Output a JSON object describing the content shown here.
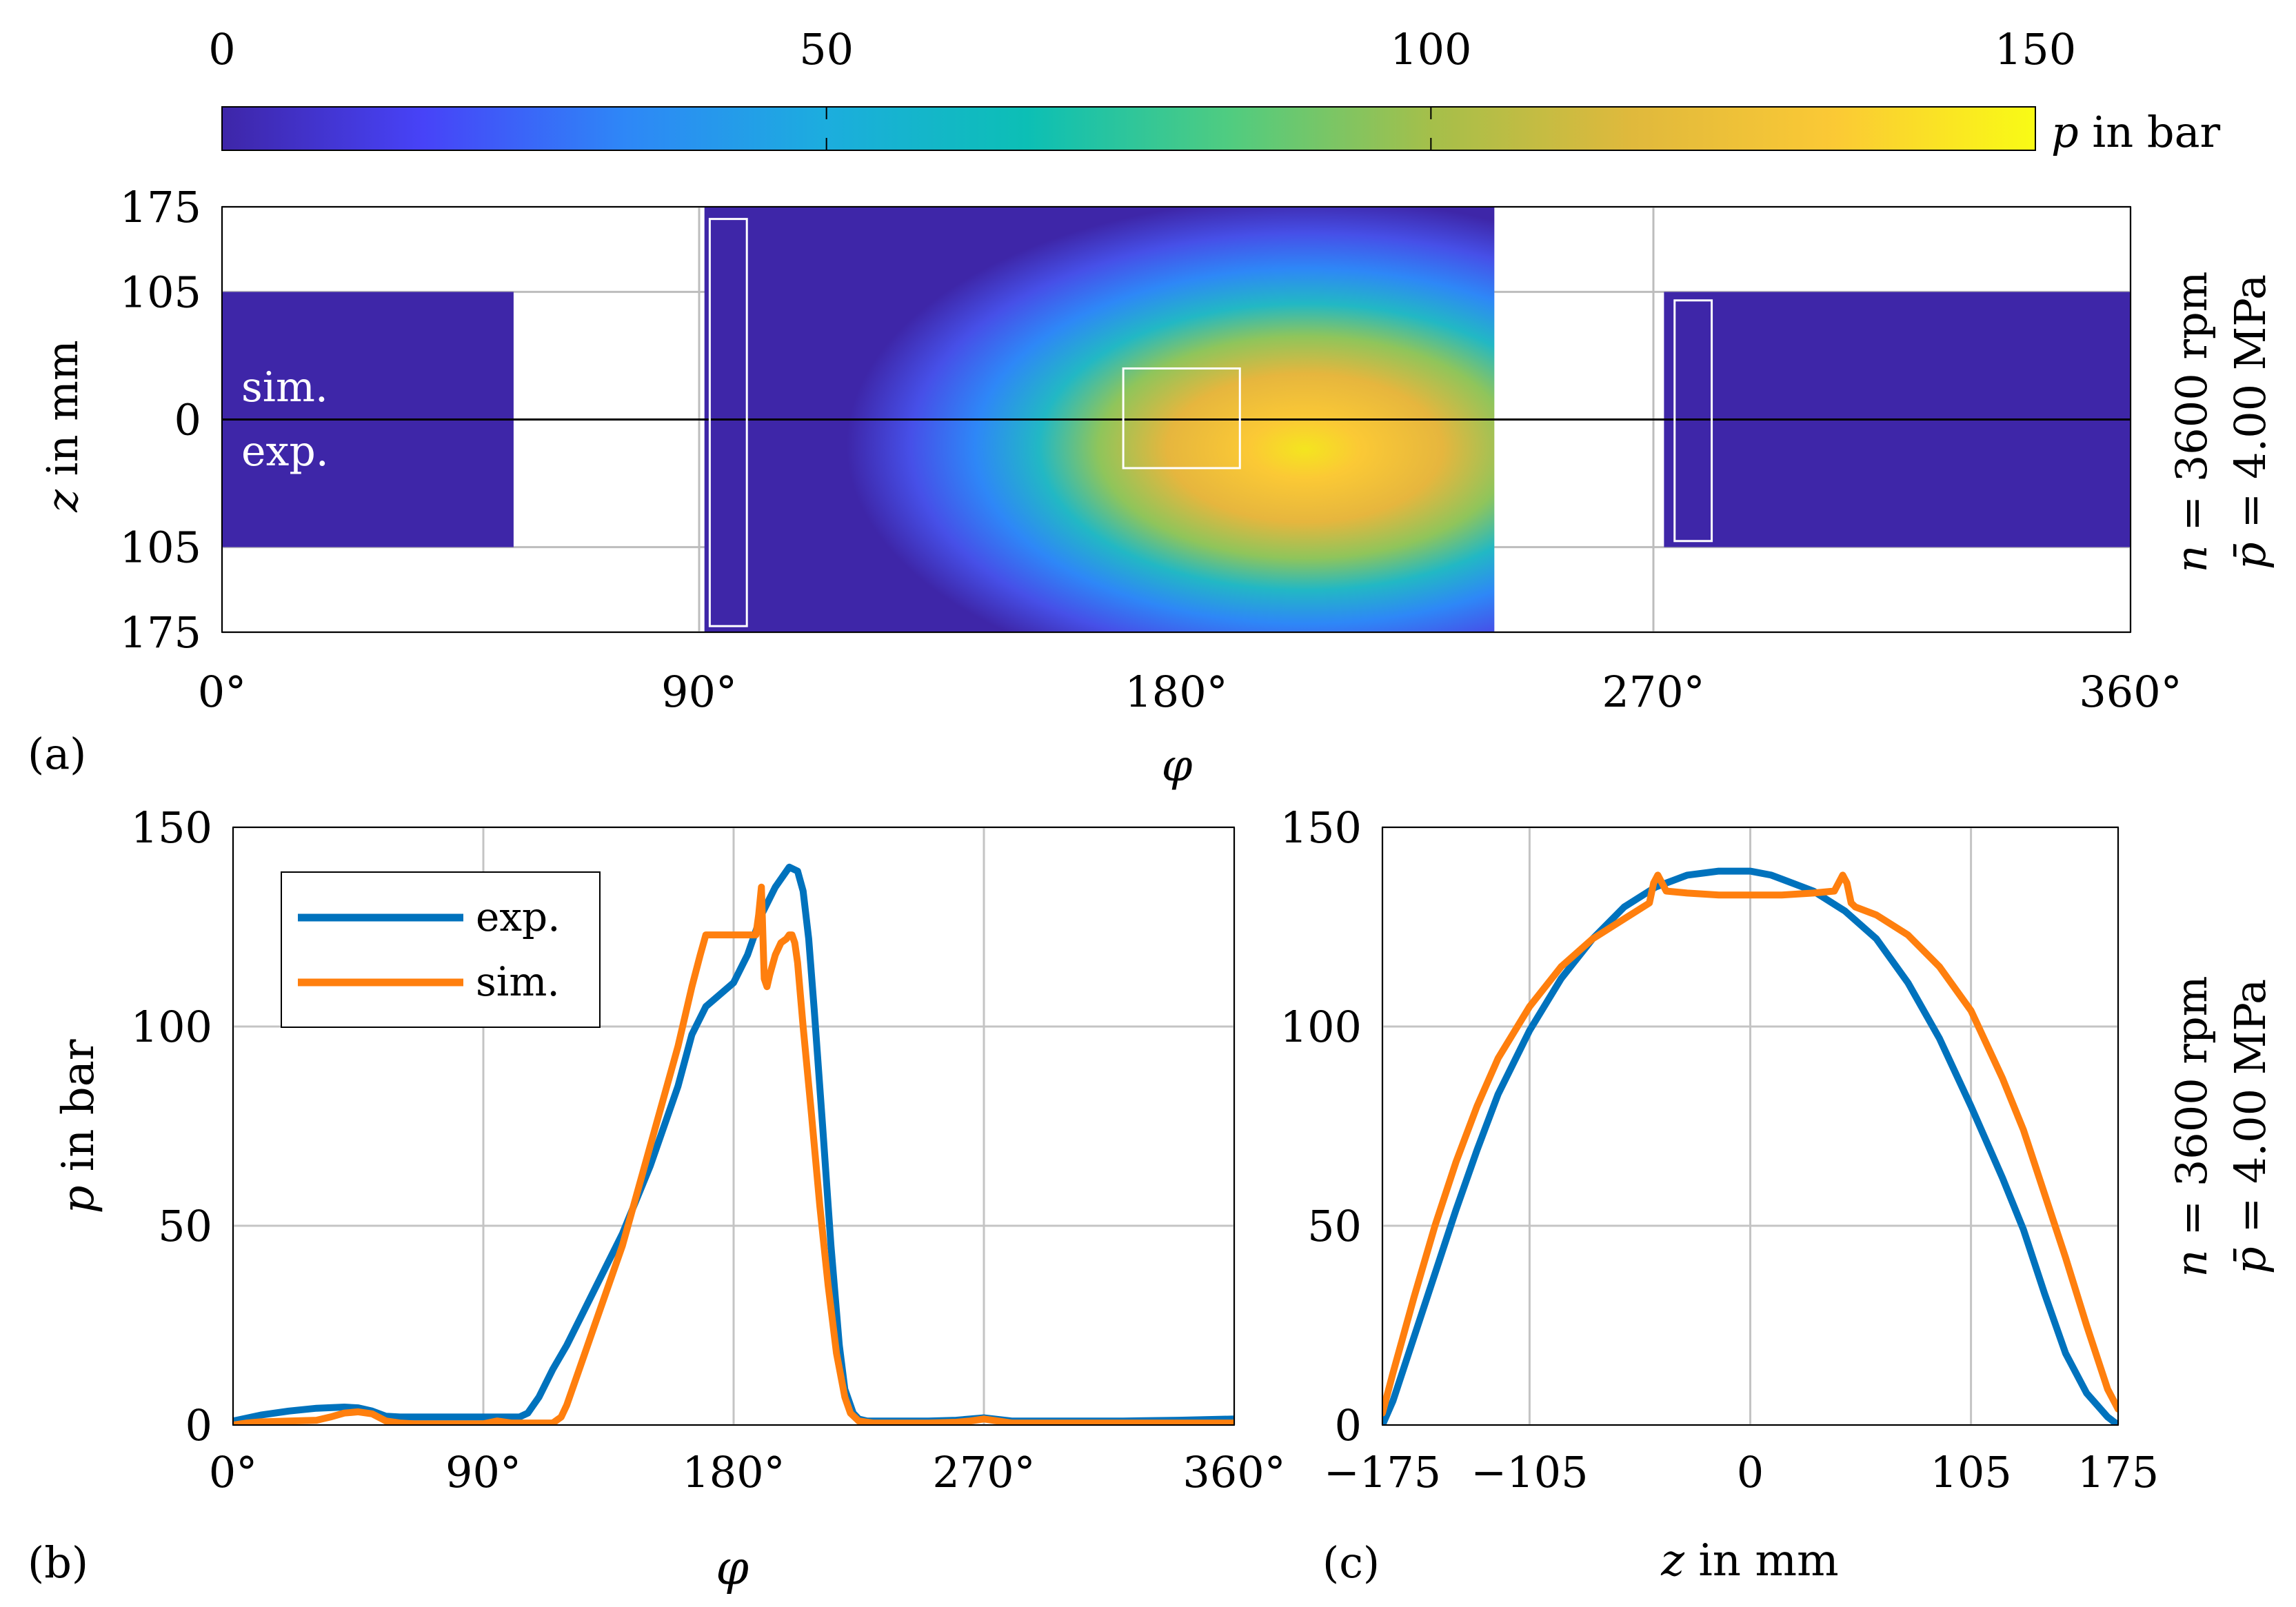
{
  "colorbar": {
    "ticks": [
      "0",
      "50",
      "100",
      "150"
    ],
    "tick_values": [
      0,
      50,
      100,
      150
    ],
    "range": [
      0,
      150
    ],
    "label_var": "p",
    "label_rest": " in bar",
    "colormap": [
      "#3e26a8",
      "#4743f8",
      "#2e87f7",
      "#1cadde",
      "#0cbfb5",
      "#50cc80",
      "#a5bf4a",
      "#e0b93c",
      "#fbc935",
      "#f9fb15"
    ]
  },
  "operating_point": {
    "speed_var": "n",
    "speed_text": " = 3600 rpm",
    "pressure_var": "p̄",
    "pressure_text": " = 4.00 MPa"
  },
  "chart_data": [
    {
      "id": "a",
      "type": "heatmap",
      "panel_label": "(a)",
      "title": "",
      "xlabel": "φ",
      "ylabel_var": "z",
      "ylabel_rest": " in mm",
      "xlim": [
        0,
        360
      ],
      "ylim": [
        -175,
        175
      ],
      "xticks": [
        0,
        90,
        180,
        270,
        360
      ],
      "xtick_labels": [
        "0°",
        "90°",
        "180°",
        "270°",
        "360°"
      ],
      "yticks": [
        175,
        105,
        0,
        -105,
        -175
      ],
      "ytick_labels": [
        "175",
        "105",
        "0",
        "105",
        "175"
      ],
      "grid": true,
      "upper_half_label": "sim.",
      "lower_half_label": "exp.",
      "pads": [
        {
          "phi": [
            0,
            55
          ],
          "z": [
            -105,
            105
          ],
          "p_bar": 2
        },
        {
          "phi": [
            91,
            240
          ],
          "z": [
            -175,
            175
          ],
          "p_bar": "distribution",
          "peak_phi": 200,
          "peak_z": -20,
          "peak_p_bar": 145
        },
        {
          "phi": [
            272,
            360
          ],
          "z": [
            -105,
            105
          ],
          "p_bar": 2
        }
      ],
      "marked_regions": [
        {
          "phi": [
            92,
            99
          ],
          "z": [
            -170,
            165
          ]
        },
        {
          "phi": [
            170,
            192
          ],
          "z": [
            -40,
            42
          ]
        },
        {
          "phi": [
            274,
            281
          ],
          "z": [
            -100,
            98
          ]
        }
      ]
    },
    {
      "id": "b",
      "type": "line",
      "panel_label": "(b)",
      "title": "",
      "xlabel": "φ",
      "ylabel_var": "p",
      "ylabel_rest": " in bar",
      "xlim": [
        0,
        360
      ],
      "ylim": [
        0,
        150
      ],
      "xticks": [
        0,
        90,
        180,
        270,
        360
      ],
      "xtick_labels": [
        "0°",
        "90°",
        "180°",
        "270°",
        "360°"
      ],
      "yticks": [
        0,
        50,
        100,
        150
      ],
      "ytick_labels": [
        "0",
        "50",
        "100",
        "150"
      ],
      "grid": true,
      "legend_position": "top-left",
      "series": [
        {
          "name": "exp.",
          "color": "#0072bd",
          "x": [
            0,
            10,
            20,
            30,
            40,
            45,
            50,
            55,
            60,
            70,
            80,
            90,
            100,
            103,
            106,
            110,
            115,
            120,
            125,
            130,
            140,
            150,
            160,
            165,
            170,
            175,
            180,
            185,
            190,
            195,
            200,
            203,
            205,
            207,
            209,
            212,
            215,
            218,
            220,
            223,
            225,
            228,
            230,
            240,
            250,
            260,
            270,
            280,
            300,
            320,
            340,
            360
          ],
          "y": [
            1,
            2.5,
            3.5,
            4.2,
            4.5,
            4.3,
            3.5,
            2.2,
            2,
            2,
            2,
            2,
            2,
            2,
            3,
            7,
            14,
            20,
            27,
            34,
            48,
            65,
            85,
            98,
            105,
            108,
            111,
            118,
            128,
            135,
            140,
            139,
            134,
            122,
            104,
            75,
            45,
            20,
            9,
            3,
            1.5,
            1,
            1,
            1,
            1,
            1.2,
            1.8,
            1,
            1,
            1,
            1.2,
            1.5
          ]
        },
        {
          "name": "sim.",
          "color": "#ff7f0e",
          "x": [
            0,
            5,
            10,
            20,
            30,
            35,
            40,
            45,
            50,
            55,
            60,
            65,
            70,
            80,
            90,
            95,
            100,
            110,
            115,
            118,
            120,
            125,
            130,
            140,
            150,
            160,
            165,
            168,
            170,
            175,
            180,
            185,
            188,
            189,
            190,
            191,
            192,
            193,
            195,
            197,
            199,
            200,
            201,
            202,
            203,
            205,
            208,
            211,
            214,
            217,
            220,
            222,
            225,
            230,
            240,
            250,
            260,
            265,
            270,
            275,
            280,
            300,
            330,
            360
          ],
          "y": [
            0,
            0.5,
            0.8,
            1,
            1.2,
            2,
            3,
            3.3,
            2.8,
            1,
            0.5,
            0.3,
            0.3,
            0.3,
            0.3,
            1,
            0.5,
            0.5,
            0.5,
            2,
            5,
            15,
            25,
            45,
            70,
            95,
            110,
            118,
            123,
            123,
            123,
            123,
            123,
            128,
            135,
            112,
            110,
            113,
            118,
            121,
            122,
            123,
            123,
            121,
            116,
            100,
            78,
            55,
            35,
            18,
            7,
            3,
            1,
            0.5,
            0.5,
            0.5,
            0.7,
            1,
            1.5,
            1,
            0.5,
            0.5,
            0.5,
            0.5
          ]
        }
      ]
    },
    {
      "id": "c",
      "type": "line",
      "panel_label": "(c)",
      "title": "",
      "xlabel_var": "z",
      "xlabel_rest": " in mm",
      "ylabel": "",
      "xlim": [
        -175,
        175
      ],
      "ylim": [
        0,
        150
      ],
      "xticks": [
        -175,
        -105,
        0,
        105,
        175
      ],
      "xtick_labels": [
        "−175",
        "−105",
        "0",
        "105",
        "175"
      ],
      "yticks": [
        0,
        50,
        100,
        150
      ],
      "ytick_labels": [
        "0",
        "50",
        "100",
        "150"
      ],
      "grid": true,
      "series": [
        {
          "name": "exp.",
          "color": "#0072bd",
          "x": [
            -175,
            -170,
            -160,
            -150,
            -140,
            -130,
            -120,
            -105,
            -90,
            -75,
            -60,
            -45,
            -30,
            -15,
            0,
            10,
            20,
            30,
            45,
            60,
            75,
            90,
            105,
            120,
            130,
            140,
            150,
            160,
            170,
            175
          ],
          "y": [
            0,
            6,
            22,
            38,
            54,
            69,
            83,
            99,
            112,
            122,
            130,
            135,
            138,
            139,
            139,
            138,
            136,
            134,
            129,
            122,
            111,
            97,
            80,
            62,
            49,
            33,
            18,
            8,
            2,
            0
          ]
        },
        {
          "name": "sim.",
          "color": "#ff7f0e",
          "x": [
            -175,
            -170,
            -160,
            -150,
            -140,
            -130,
            -120,
            -105,
            -90,
            -75,
            -60,
            -48,
            -46,
            -44,
            -42,
            -40,
            -30,
            -15,
            0,
            15,
            30,
            40,
            42,
            44,
            46,
            48,
            50,
            60,
            75,
            90,
            105,
            120,
            130,
            140,
            150,
            160,
            170,
            175
          ],
          "y": [
            3,
            13,
            32,
            50,
            66,
            80,
            92,
            105,
            115,
            122,
            127,
            131,
            136,
            138,
            136,
            134,
            133.5,
            133,
            133,
            133,
            133.5,
            134,
            136,
            138,
            136,
            131,
            130,
            128,
            123,
            115,
            104,
            87,
            74,
            58,
            42,
            25,
            9,
            4
          ]
        }
      ]
    }
  ]
}
